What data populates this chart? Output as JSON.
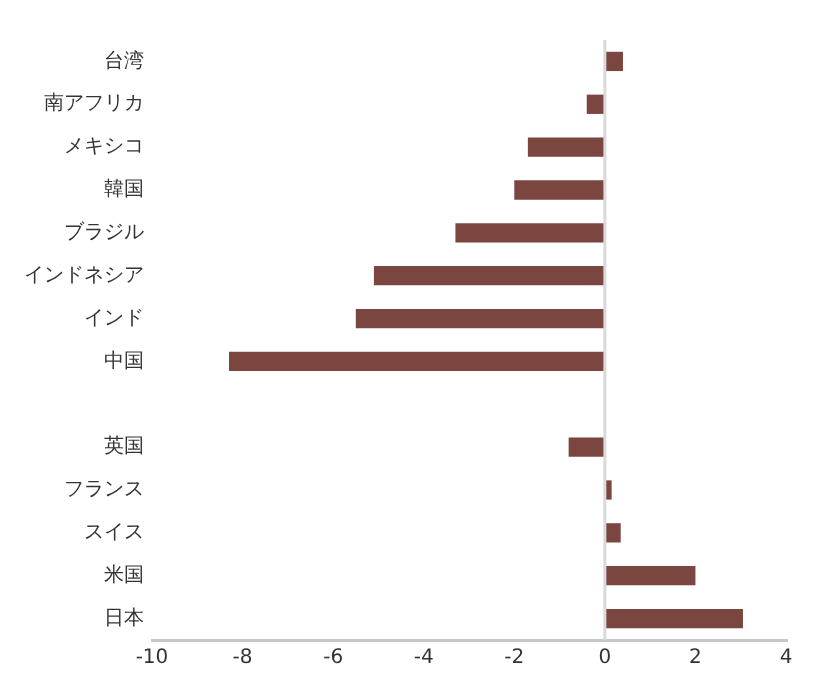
{
  "chart_data": {
    "type": "bar",
    "orientation": "horizontal",
    "categories": [
      "台湾",
      "南アフリカ",
      "メキシコ",
      "韓国",
      "ブラジル",
      "インドネシア",
      "インド",
      "中国",
      null,
      "英国",
      "フランス",
      "スイス",
      "米国",
      "日本"
    ],
    "values": [
      0.4,
      -0.4,
      -1.7,
      -2.0,
      -3.3,
      -5.1,
      -5.5,
      -8.3,
      null,
      -0.8,
      0.15,
      0.35,
      2.0,
      3.05
    ],
    "color": "#7b4640",
    "xlim": [
      -10,
      4
    ],
    "xticks": [
      -10,
      -8,
      -6,
      -4,
      -2,
      0,
      2,
      4
    ],
    "grid": false,
    "legend": false,
    "ref_lines": [
      {
        "axis": "x",
        "value": 0,
        "color": "#d9d9d9"
      }
    ]
  }
}
